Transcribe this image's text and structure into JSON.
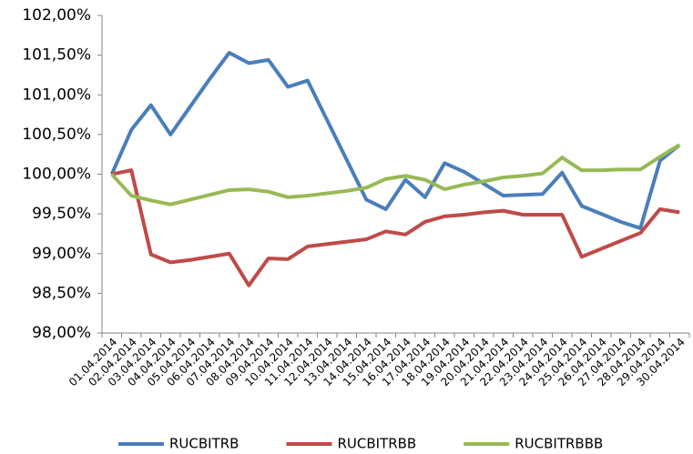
{
  "chart_data": {
    "type": "line",
    "categories": [
      "01.04.2014",
      "02.04.2014",
      "03.04.2014",
      "04.04.2014",
      "05.04.2014",
      "06.04.2014",
      "07.04.2014",
      "08.04.2014",
      "09.04.2014",
      "10.04.2014",
      "11.04.2014",
      "12.04.2014",
      "13.04.2014",
      "14.04.2014",
      "15.04.2014",
      "16.04.2014",
      "17.04.2014",
      "18.04.2014",
      "19.04.2014",
      "20.04.2014",
      "21.04.2014",
      "22.04.2014",
      "23.04.2014",
      "24.04.2014",
      "25.04.2014",
      "26.04.2014",
      "27.04.2014",
      "28.04.2014",
      "29.04.2014",
      "30.04.2014"
    ],
    "series": [
      {
        "name": "RUCBITRB",
        "color": "#4a7ebb",
        "values": [
          100.0,
          100.56,
          100.87,
          100.5,
          100.85,
          101.2,
          101.53,
          101.4,
          101.44,
          101.1,
          101.18,
          100.68,
          100.18,
          99.68,
          99.56,
          99.93,
          99.71,
          100.14,
          100.03,
          99.88,
          99.73,
          99.74,
          99.75,
          100.02,
          99.6,
          99.5,
          99.4,
          99.32,
          100.17,
          100.37
        ]
      },
      {
        "name": "RUCBITRBB",
        "color": "#be4b48",
        "values": [
          100.0,
          100.05,
          98.99,
          98.89,
          98.92,
          98.96,
          99.0,
          98.6,
          98.94,
          98.93,
          99.09,
          99.12,
          99.15,
          99.18,
          99.28,
          99.24,
          99.4,
          99.47,
          99.49,
          99.52,
          99.54,
          99.49,
          99.49,
          99.49,
          98.96,
          99.06,
          99.16,
          99.26,
          99.56,
          99.52
        ]
      },
      {
        "name": "RUCBITRBBB",
        "color": "#98b954",
        "values": [
          100.0,
          99.73,
          99.67,
          99.62,
          99.68,
          99.74,
          99.8,
          99.81,
          99.78,
          99.71,
          99.73,
          99.76,
          99.79,
          99.83,
          99.94,
          99.98,
          99.93,
          99.81,
          99.87,
          99.91,
          99.96,
          99.98,
          100.01,
          100.21,
          100.05,
          100.05,
          100.06,
          100.06,
          100.22,
          100.37
        ]
      }
    ],
    "ylim": [
      98,
      102
    ],
    "yticks": [
      {
        "value": 98,
        "label": "98,00%"
      },
      {
        "value": 98.5,
        "label": "98,50%"
      },
      {
        "value": 99,
        "label": "99,00%"
      },
      {
        "value": 99.5,
        "label": "99,50%"
      },
      {
        "value": 100,
        "label": "100,00%"
      },
      {
        "value": 100.5,
        "label": "100,50%"
      },
      {
        "value": 101,
        "label": "101,00%"
      },
      {
        "value": 101.5,
        "label": "101,50%"
      },
      {
        "value": 102,
        "label": "102,00%"
      }
    ],
    "grid": false,
    "legend": "bottom"
  }
}
